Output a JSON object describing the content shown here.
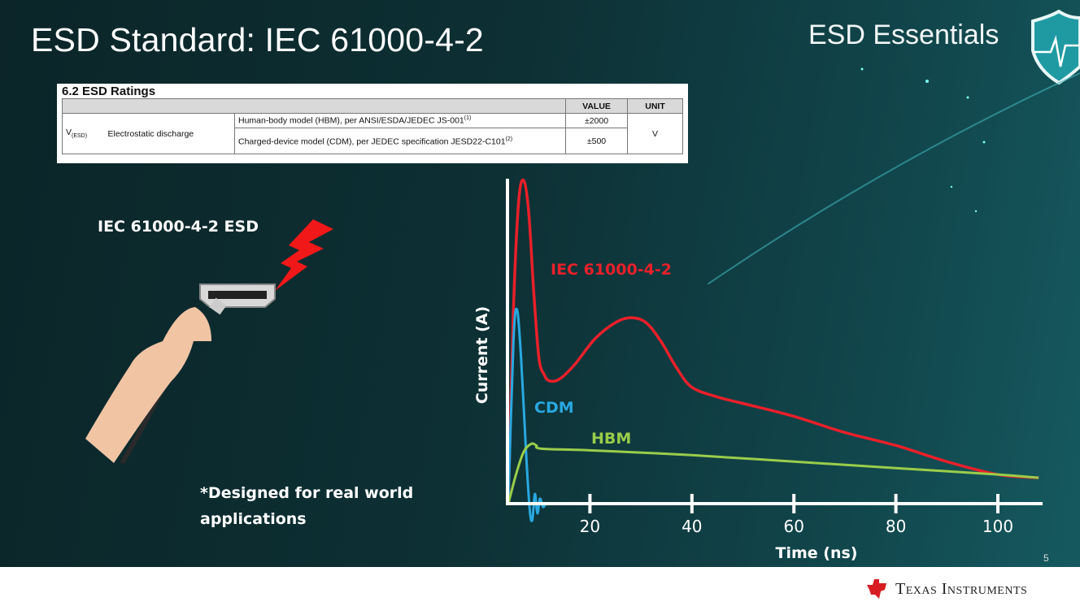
{
  "slide": {
    "title": "ESD Standard: IEC 61000-4-2",
    "brand": "ESD Essentials",
    "brand_icon": "shield-heartbeat-icon",
    "subtitle": "IEC 61000-4-2 ESD",
    "note_line1": "*Designed for real world",
    "note_line2": "applications",
    "page_number": "5",
    "footer_logo": "Texas Instruments"
  },
  "table": {
    "title": "6.2   ESD Ratings",
    "headers": [
      "",
      "",
      "VALUE",
      "UNIT"
    ],
    "symbol": "V",
    "symbol_sub": "(ESD)",
    "parameter": "Electrostatic discharge",
    "rows": [
      {
        "condition": "Human-body model (HBM), per ANSI/ESDA/JEDEC JS-001",
        "footnote": "(1)",
        "value": "±2000"
      },
      {
        "condition": "Charged-device model (CDM), per JEDEC specification JESD22-C101",
        "footnote": "(2)",
        "value": "±500"
      }
    ],
    "unit": "V"
  },
  "chart_data": {
    "type": "line",
    "xlabel": "Time (ns)",
    "ylabel": "Current (A)",
    "xticks": [
      20,
      40,
      60,
      80,
      100
    ],
    "xlim": [
      4,
      109
    ],
    "ylim": [
      0,
      1
    ],
    "grid": false,
    "series": [
      {
        "name": "IEC 61000-4-2",
        "color": "#e8202a",
        "x": [
          4,
          5,
          6,
          7,
          8,
          9,
          10,
          11,
          12,
          14,
          17,
          21,
          25,
          28,
          31,
          34,
          37,
          40,
          45,
          50,
          60,
          70,
          80,
          90,
          100,
          108
        ],
        "y": [
          0,
          0.6,
          0.93,
          1.0,
          0.9,
          0.65,
          0.45,
          0.4,
          0.38,
          0.385,
          0.43,
          0.51,
          0.56,
          0.575,
          0.56,
          0.5,
          0.42,
          0.36,
          0.33,
          0.31,
          0.27,
          0.22,
          0.18,
          0.13,
          0.09,
          0.08
        ]
      },
      {
        "name": "CDM",
        "color": "#29a8e0",
        "x": [
          4,
          5,
          5.7,
          6.5,
          7.5,
          8.2,
          8.7,
          9.2,
          9.7,
          10.2,
          10.8,
          11.5,
          13.5
        ],
        "y": [
          0,
          0.5,
          0.6,
          0.45,
          0.15,
          -0.02,
          -0.05,
          0.03,
          -0.03,
          0.015,
          -0.01,
          0,
          0
        ]
      },
      {
        "name": "HBM",
        "color": "#9acd4a",
        "x": [
          4,
          5.5,
          7,
          8.5,
          9.5,
          10.5,
          20,
          40,
          60,
          80,
          100,
          108
        ],
        "y": [
          0,
          0.09,
          0.16,
          0.185,
          0.18,
          0.17,
          0.165,
          0.15,
          0.13,
          0.11,
          0.09,
          0.08
        ]
      }
    ]
  }
}
